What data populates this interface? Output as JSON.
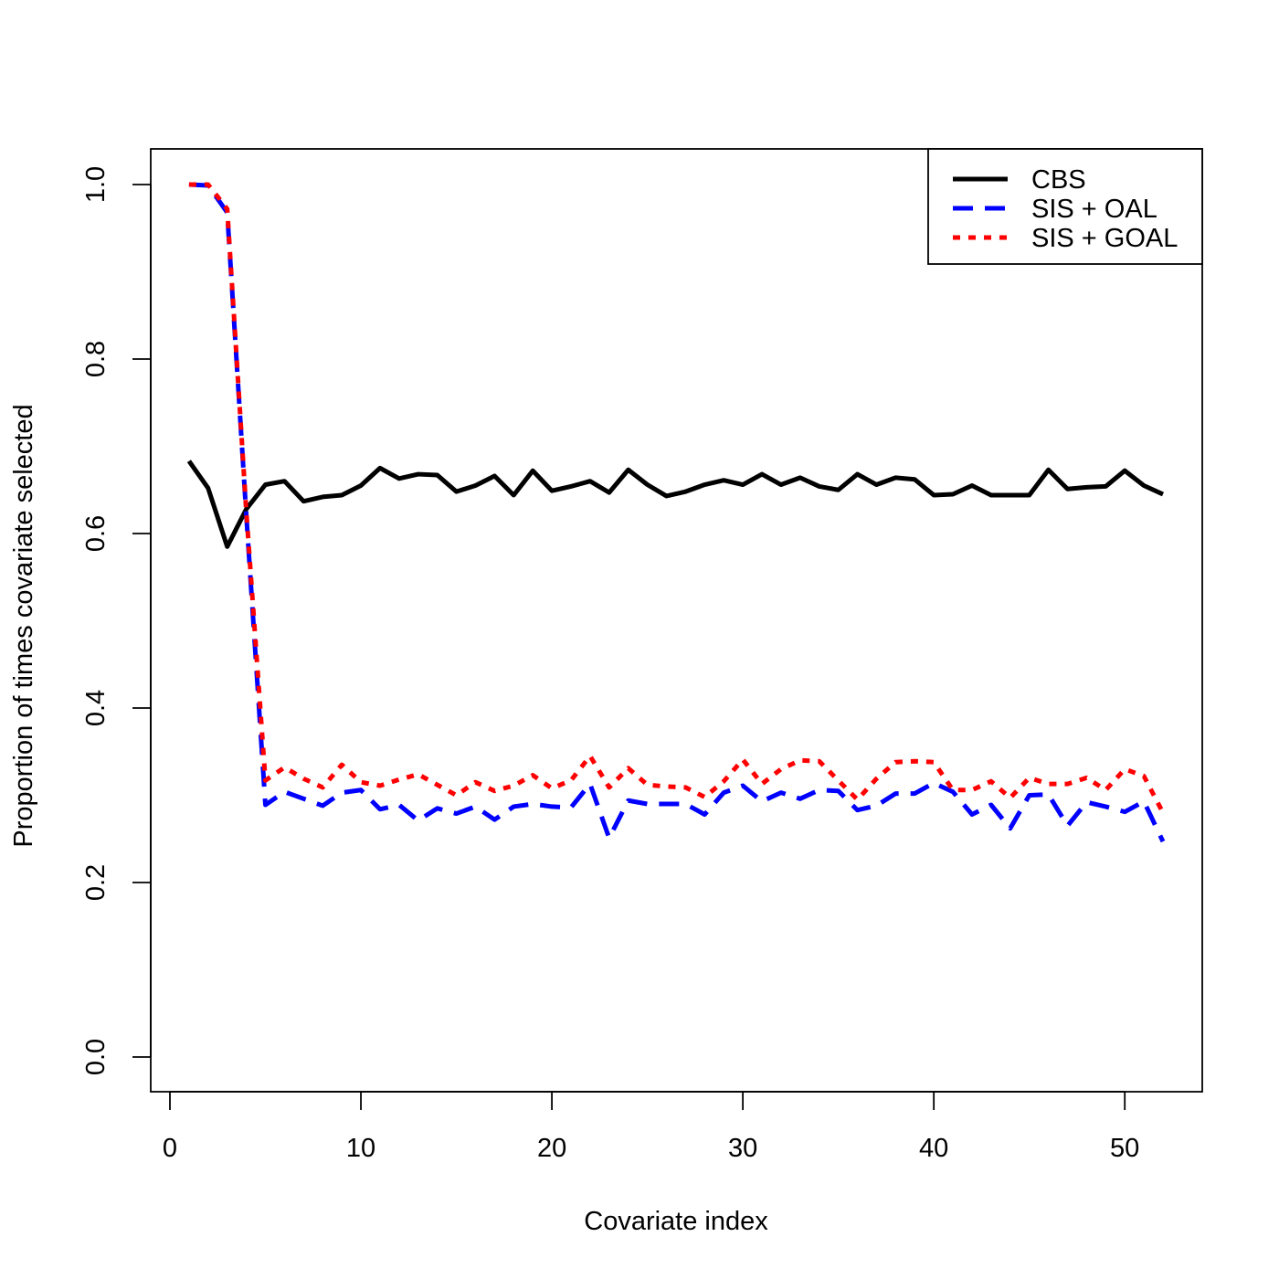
{
  "chart_data": {
    "type": "line",
    "title": "",
    "xlabel": "Covariate index",
    "ylabel": "Proportion of times covariate selected",
    "xlim": [
      0,
      52
    ],
    "ylim": [
      0,
      1
    ],
    "x_ticks": [
      0,
      10,
      20,
      30,
      40,
      50
    ],
    "y_ticks": [
      0.0,
      0.2,
      0.4,
      0.6,
      0.8,
      1.0
    ],
    "x_tick_labels": [
      "0",
      "10",
      "20",
      "30",
      "40",
      "50"
    ],
    "y_tick_labels": [
      "0.0",
      "0.2",
      "0.4",
      "0.6",
      "0.8",
      "1.0"
    ],
    "legend_position": "top-right",
    "grid": false,
    "x": [
      1,
      2,
      3,
      4,
      5,
      6,
      7,
      8,
      9,
      10,
      11,
      12,
      13,
      14,
      15,
      16,
      17,
      18,
      19,
      20,
      21,
      22,
      23,
      24,
      25,
      26,
      27,
      28,
      29,
      30,
      31,
      32,
      33,
      34,
      35,
      36,
      37,
      38,
      39,
      40,
      41,
      42,
      43,
      44,
      45,
      46,
      47,
      48,
      49,
      50,
      51,
      52
    ],
    "series": [
      {
        "name": "CBS",
        "color": "#000000",
        "line_style": "solid",
        "values": [
          0.683,
          0.652,
          0.585,
          0.628,
          0.656,
          0.66,
          0.637,
          0.642,
          0.644,
          0.655,
          0.675,
          0.663,
          0.668,
          0.667,
          0.648,
          0.655,
          0.666,
          0.644,
          0.672,
          0.649,
          0.654,
          0.66,
          0.647,
          0.673,
          0.656,
          0.643,
          0.648,
          0.656,
          0.661,
          0.656,
          0.668,
          0.656,
          0.664,
          0.654,
          0.65,
          0.668,
          0.656,
          0.664,
          0.662,
          0.644,
          0.645,
          0.655,
          0.644,
          0.644,
          0.644,
          0.673,
          0.651,
          0.653,
          0.654,
          0.672,
          0.655,
          0.645
        ]
      },
      {
        "name": "SIS + OAL",
        "color": "#0000ff",
        "line_style": "dashed",
        "values": [
          1.0,
          0.999,
          0.968,
          0.621,
          0.289,
          0.304,
          0.296,
          0.288,
          0.303,
          0.306,
          0.284,
          0.289,
          0.271,
          0.285,
          0.279,
          0.287,
          0.272,
          0.287,
          0.29,
          0.287,
          0.286,
          0.313,
          0.251,
          0.294,
          0.29,
          0.29,
          0.29,
          0.278,
          0.303,
          0.311,
          0.293,
          0.303,
          0.296,
          0.306,
          0.305,
          0.283,
          0.288,
          0.302,
          0.302,
          0.314,
          0.304,
          0.278,
          0.289,
          0.262,
          0.3,
          0.301,
          0.265,
          0.292,
          0.287,
          0.281,
          0.293,
          0.247
        ]
      },
      {
        "name": "SIS + GOAL",
        "color": "#ff0000",
        "line_style": "dotted",
        "values": [
          1.0,
          1.0,
          0.972,
          0.625,
          0.317,
          0.332,
          0.319,
          0.309,
          0.335,
          0.315,
          0.311,
          0.318,
          0.324,
          0.312,
          0.3,
          0.315,
          0.305,
          0.311,
          0.323,
          0.308,
          0.317,
          0.345,
          0.309,
          0.331,
          0.312,
          0.31,
          0.309,
          0.298,
          0.316,
          0.341,
          0.313,
          0.33,
          0.34,
          0.339,
          0.317,
          0.295,
          0.319,
          0.338,
          0.339,
          0.338,
          0.306,
          0.306,
          0.316,
          0.297,
          0.32,
          0.313,
          0.313,
          0.32,
          0.306,
          0.33,
          0.322,
          0.28
        ]
      }
    ]
  }
}
